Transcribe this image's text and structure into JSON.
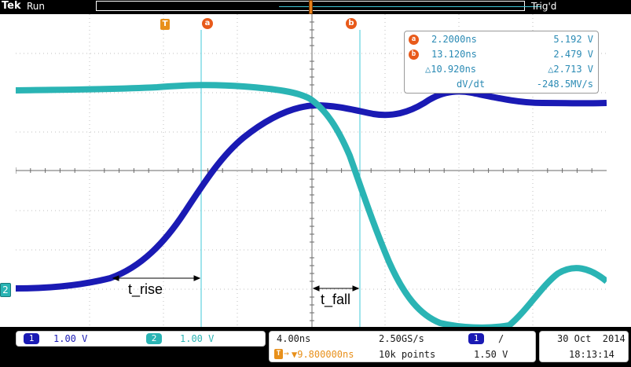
{
  "header": {
    "brand": "Tek",
    "run_status": "Run",
    "trigger_status": "Trig'd"
  },
  "markers": {
    "trigger_marker": "T",
    "cursor_a": "a",
    "cursor_b": "b"
  },
  "cursor_readout": {
    "a_time": "2.2000ns",
    "a_volt": "5.192 V",
    "b_time": "13.120ns",
    "b_volt": "2.479 V",
    "delta_time": "△10.920ns",
    "delta_volt": "△2.713 V",
    "dvdt_label": "dV/dt",
    "dvdt_value": "-248.5MV/s"
  },
  "annotations": {
    "rise": "t_rise",
    "fall": "t_fall"
  },
  "channels": {
    "ch1_label": "1",
    "ch1_scale": "1.00 V",
    "ch2_label": "2",
    "ch2_scale": "1.00 V",
    "ch2_ground": "2"
  },
  "timebase": {
    "scale": "4.00ns",
    "sample_rate": "2.50GS/s",
    "position": "▼9.800000ns",
    "record_length": "10k points"
  },
  "trigger": {
    "source": "1",
    "slope": "/",
    "level": "1.50 V"
  },
  "datetime": {
    "date": "30 Oct  2014",
    "time": "18:13:14"
  },
  "colors": {
    "ch1": "#1a1ab4",
    "ch2": "#2ab4b4",
    "cursor": "#40c8d8",
    "accent": "#e85a1a"
  }
}
